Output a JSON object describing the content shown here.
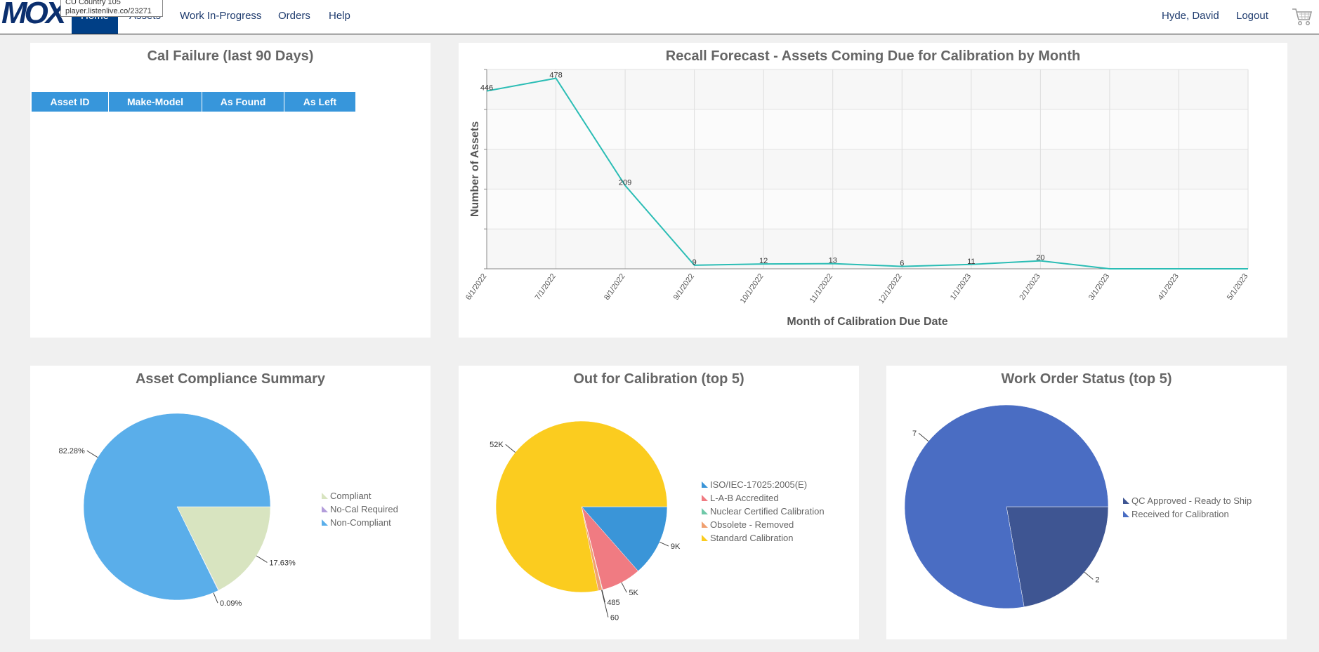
{
  "nav": {
    "logo": "MOX",
    "home": "Home",
    "assets": "Assets",
    "work_in_progress": "Work In-Progress",
    "orders": "Orders",
    "help": "Help",
    "user": "Hyde, David",
    "logout": "Logout",
    "tooltip_line1": "CU Country 105",
    "tooltip_line2": "player.listenlive.co/23271"
  },
  "cal_failure": {
    "title": "Cal Failure (last 90 Days)",
    "columns": [
      "Asset ID",
      "Make-Model",
      "As Found",
      "As Left"
    ]
  },
  "chart_data": [
    {
      "type": "line",
      "title": "Recall Forecast - Assets Coming Due for Calibration by Month",
      "xlabel": "Month of Calibration Due Date",
      "ylabel": "Number of Assets",
      "categories": [
        "6/1/2022",
        "7/1/2022",
        "8/1/2022",
        "9/1/2022",
        "10/1/2022",
        "11/1/2022",
        "12/1/2022",
        "1/1/2023",
        "2/1/2023",
        "3/1/2023",
        "4/1/2023",
        "5/1/2023"
      ],
      "values": [
        446,
        478,
        209,
        9,
        12,
        13,
        6,
        11,
        20,
        0,
        0,
        0
      ],
      "data_labels": [
        "446",
        "478",
        "209",
        "9",
        "12",
        "13",
        "6",
        "11",
        "20",
        "",
        "",
        ""
      ],
      "ylim": [
        0,
        500
      ],
      "grid": true,
      "color": "#2bbdb5"
    },
    {
      "type": "pie",
      "title": "Asset Compliance Summary",
      "labels": [
        "Compliant",
        "No-Cal Required",
        "Non-Compliant"
      ],
      "values": [
        17.63,
        0.09,
        82.28
      ],
      "data_labels": [
        "17.63%",
        "0.09%",
        "82.28%"
      ],
      "colors": [
        "#d8e4c0",
        "#b39ddb",
        "#5aaeea"
      ],
      "legend": "right"
    },
    {
      "type": "pie",
      "title": "Out for Calibration (top 5)",
      "labels": [
        "ISO/IEC-17025:2005(E)",
        "L-A-B Accredited",
        "Nuclear Certified Calibration",
        "Obsolete - Removed",
        "Standard Calibration"
      ],
      "values": [
        9000,
        5000,
        60,
        485,
        52000
      ],
      "data_labels": [
        "9K",
        "5K",
        "60",
        "485",
        "52K"
      ],
      "colors": [
        "#3a95d8",
        "#f07b82",
        "#6fc8a8",
        "#f0a070",
        "#fbcc1f"
      ],
      "legend": "right"
    },
    {
      "type": "pie",
      "title": "Work Order Status (top 5)",
      "labels": [
        "QC Approved - Ready to Ship",
        "Received for Calibration"
      ],
      "values": [
        2,
        7
      ],
      "data_labels": [
        "2",
        "7"
      ],
      "colors": [
        "#3e5592",
        "#4a6dc3"
      ],
      "legend": "right"
    }
  ]
}
